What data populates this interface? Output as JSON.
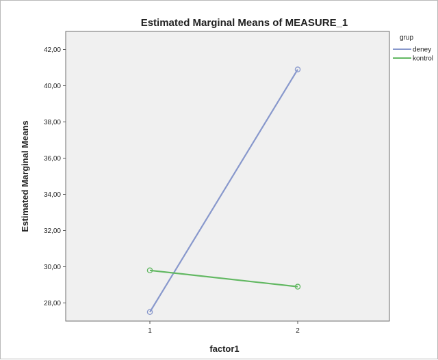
{
  "chart_data": {
    "type": "line",
    "title": "Estimated Marginal Means of MEASURE_1",
    "xlabel": "factor1",
    "ylabel": "Estimated Marginal Means",
    "categories": [
      "1",
      "2"
    ],
    "yticks": [
      "28,00",
      "30,00",
      "32,00",
      "34,00",
      "36,00",
      "38,00",
      "40,00",
      "42,00"
    ],
    "ylim": [
      27.0,
      43.0
    ],
    "legend_title": "grup",
    "legend_position": "right",
    "grid": false,
    "series": [
      {
        "name": "deney",
        "values": [
          27.5,
          40.9
        ],
        "color": "#8898cc"
      },
      {
        "name": "kontrol",
        "values": [
          29.8,
          28.9
        ],
        "color": "#62b862"
      }
    ],
    "plot_background": "#f0f0f0"
  }
}
